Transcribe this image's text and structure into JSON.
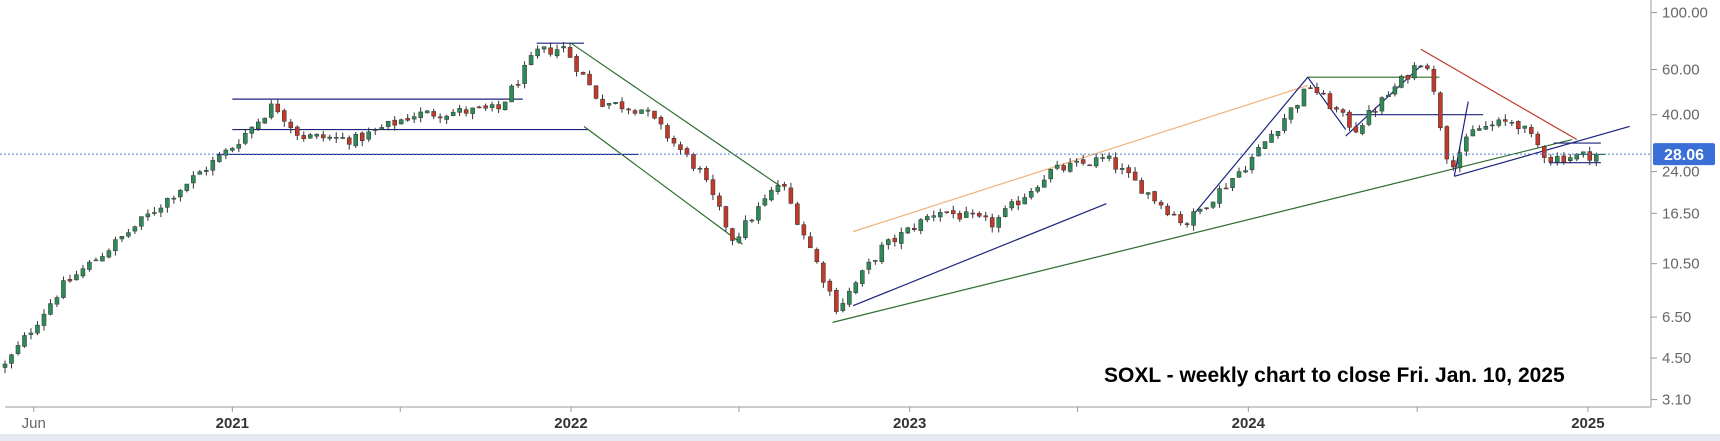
{
  "chart_data": {
    "type": "candlestick",
    "symbol": "SOXL",
    "annotation": "SOXL - weekly chart to close Fri. Jan. 10, 2025",
    "y_scale": "log",
    "ylim": [
      2.9,
      110
    ],
    "y_ticks": [
      "100.00",
      "60.00",
      "40.00",
      "24.00",
      "16.50",
      "10.50",
      "6.50",
      "4.50",
      "3.10"
    ],
    "x_start": "2020-05-01",
    "x_end": "2025-03-10",
    "x_ticks": [
      {
        "label": "Jun",
        "date": "2020-06-01",
        "bold": false
      },
      {
        "label": "2021",
        "date": "2021-01-01",
        "bold": true
      },
      {
        "label": "2022",
        "date": "2022-01-01",
        "bold": true
      },
      {
        "label": "2023",
        "date": "2023-01-01",
        "bold": true
      },
      {
        "label": "2024",
        "date": "2024-01-01",
        "bold": true
      },
      {
        "label": "2025",
        "date": "2025-01-01",
        "bold": true
      }
    ],
    "minor_x_ticks": [
      "2021-07-01",
      "2022-07-01",
      "2023-07-01",
      "2024-07-01"
    ],
    "last_price": "28.06",
    "colors": {
      "up": "#2e8b57",
      "down": "#c0392b",
      "price_tag": "#3a6fd8",
      "dotted_line": "#4a7fd4"
    },
    "anchors": [
      {
        "date": "2020-05-01",
        "price": 4.2
      },
      {
        "date": "2020-07-01",
        "price": 8.5
      },
      {
        "date": "2020-09-01",
        "price": 13
      },
      {
        "date": "2020-11-01",
        "price": 20
      },
      {
        "date": "2021-01-01",
        "price": 30
      },
      {
        "date": "2021-02-15",
        "price": 44
      },
      {
        "date": "2021-03-15",
        "price": 33
      },
      {
        "date": "2021-05-15",
        "price": 32
      },
      {
        "date": "2021-07-15",
        "price": 40
      },
      {
        "date": "2021-10-15",
        "price": 42
      },
      {
        "date": "2021-11-25",
        "price": 70
      },
      {
        "date": "2021-12-25",
        "price": 73
      },
      {
        "date": "2022-02-01",
        "price": 45
      },
      {
        "date": "2022-03-20",
        "price": 42
      },
      {
        "date": "2022-05-20",
        "price": 24
      },
      {
        "date": "2022-06-25",
        "price": 13
      },
      {
        "date": "2022-08-15",
        "price": 22
      },
      {
        "date": "2022-10-15",
        "price": 7
      },
      {
        "date": "2022-12-01",
        "price": 12
      },
      {
        "date": "2023-02-01",
        "price": 17
      },
      {
        "date": "2023-04-01",
        "price": 15
      },
      {
        "date": "2023-06-01",
        "price": 24
      },
      {
        "date": "2023-08-01",
        "price": 27
      },
      {
        "date": "2023-10-25",
        "price": 15
      },
      {
        "date": "2024-01-01",
        "price": 26
      },
      {
        "date": "2024-03-08",
        "price": 52
      },
      {
        "date": "2024-04-25",
        "price": 35
      },
      {
        "date": "2024-07-10",
        "price": 68
      },
      {
        "date": "2024-08-05",
        "price": 25
      },
      {
        "date": "2024-09-01",
        "price": 35
      },
      {
        "date": "2024-10-15",
        "price": 38
      },
      {
        "date": "2024-11-20",
        "price": 27
      },
      {
        "date": "2025-01-10",
        "price": 28.06
      }
    ],
    "trendlines": [
      {
        "color": "#1a237e",
        "points": [
          [
            "2021-01-01",
            46
          ],
          [
            "2021-11-10",
            46
          ]
        ]
      },
      {
        "color": "#1a237e",
        "points": [
          [
            "2021-01-01",
            35
          ],
          [
            "2022-01-20",
            35
          ]
        ]
      },
      {
        "color": "#1a237e",
        "points": [
          [
            "2020-12-15",
            28
          ],
          [
            "2022-03-15",
            28
          ]
        ]
      },
      {
        "color": "#1a237e",
        "points": [
          [
            "2021-11-25",
            76
          ],
          [
            "2022-01-15",
            76
          ]
        ]
      },
      {
        "color": "#2e6b2e",
        "points": [
          [
            "2022-01-01",
            76
          ],
          [
            "2022-08-15",
            21
          ]
        ]
      },
      {
        "color": "#2e6b2e",
        "points": [
          [
            "2022-01-15",
            36
          ],
          [
            "2022-07-05",
            12.5
          ]
        ]
      },
      {
        "color": "#1a237e",
        "points": [
          [
            "2022-11-01",
            7.2
          ],
          [
            "2023-08-01",
            18
          ]
        ]
      },
      {
        "color": "#2e6b2e",
        "points": [
          [
            "2022-10-10",
            6.2
          ],
          [
            "2024-12-15",
            32
          ]
        ]
      },
      {
        "color": "#f0b27a",
        "points": [
          [
            "2022-11-01",
            14
          ],
          [
            "2024-03-05",
            52
          ]
        ]
      },
      {
        "color": "#1a237e",
        "points": [
          [
            "2023-11-01",
            16
          ],
          [
            "2024-03-05",
            56
          ]
        ]
      },
      {
        "color": "#2e6b2e",
        "points": [
          [
            "2024-03-05",
            56
          ],
          [
            "2024-07-25",
            56
          ]
        ]
      },
      {
        "color": "#1a237e",
        "points": [
          [
            "2024-03-05",
            56
          ],
          [
            "2024-04-15",
            35
          ]
        ]
      },
      {
        "color": "#1a237e",
        "points": [
          [
            "2024-04-15",
            33
          ],
          [
            "2024-07-05",
            62
          ]
        ]
      },
      {
        "color": "#1a237e",
        "points": [
          [
            "2024-04-15",
            40
          ],
          [
            "2024-09-10",
            40
          ]
        ]
      },
      {
        "color": "#c0392b",
        "points": [
          [
            "2024-07-05",
            72
          ],
          [
            "2024-12-20",
            32
          ]
        ]
      },
      {
        "color": "#1a237e",
        "points": [
          [
            "2024-08-10",
            23
          ],
          [
            "2024-08-25",
            45
          ]
        ]
      },
      {
        "color": "#1a237e",
        "points": [
          [
            "2024-08-10",
            23
          ],
          [
            "2025-02-15",
            36
          ]
        ]
      },
      {
        "color": "#1a237e",
        "points": [
          [
            "2024-11-25",
            31
          ],
          [
            "2025-01-15",
            31
          ]
        ]
      },
      {
        "color": "#1a237e",
        "points": [
          [
            "2024-11-20",
            26
          ],
          [
            "2025-01-15",
            26
          ]
        ]
      },
      {
        "color": "#2e6b2e",
        "points": [
          [
            "2024-12-20",
            28
          ],
          [
            "2025-01-20",
            28
          ]
        ]
      }
    ]
  }
}
